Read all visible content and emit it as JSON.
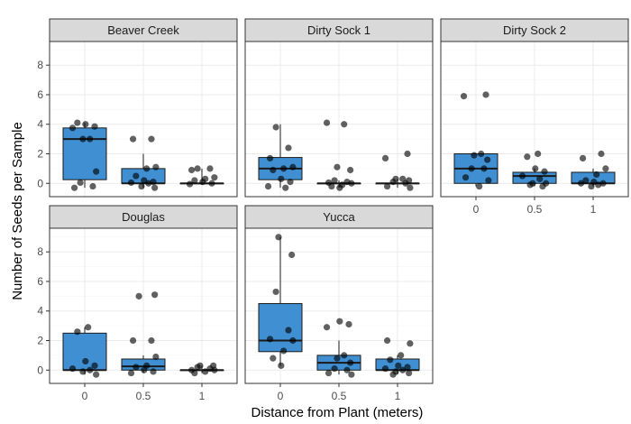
{
  "chart_data": {
    "type": "boxplot",
    "xlabel": "Distance from Plant (meters)",
    "ylabel": "Number of Seeds per Sample",
    "categories": [
      "0",
      "0.5",
      "1"
    ],
    "y_ticks": [
      "0",
      "2",
      "4",
      "6",
      "8"
    ],
    "ylim": [
      -0.9,
      9.6
    ],
    "grid": true,
    "box_color": "#3f8fd2",
    "panels": [
      {
        "name": "Beaver Creek",
        "boxes": [
          {
            "category": "0",
            "q1": 0.25,
            "median": 3.0,
            "q3": 3.75,
            "whisker_low": -0.3,
            "whisker_high": 4.1,
            "points": [
              -0.3,
              -0.2,
              0.05,
              0.8,
              3.0,
              3.0,
              3.75,
              3.85,
              4.0,
              4.1
            ]
          },
          {
            "category": "0.5",
            "q1": 0.0,
            "median": 0.0,
            "q3": 1.0,
            "whisker_low": -0.3,
            "whisker_high": 2.0,
            "points": [
              -0.3,
              -0.2,
              0.0,
              0.05,
              0.1,
              0.2,
              0.5,
              1.0,
              1.1,
              3.0,
              3.0
            ]
          },
          {
            "category": "1",
            "q1": 0.0,
            "median": 0.0,
            "q3": 0.0,
            "whisker_low": -0.1,
            "whisker_high": 1.0,
            "points": [
              -0.05,
              0.0,
              0.1,
              0.2,
              0.3,
              0.4,
              0.9,
              1.0,
              1.0
            ]
          }
        ]
      },
      {
        "name": "Dirty Sock 1",
        "boxes": [
          {
            "category": "0",
            "q1": 0.25,
            "median": 1.0,
            "q3": 1.75,
            "whisker_low": -0.3,
            "whisker_high": 4.0,
            "points": [
              -0.3,
              -0.2,
              0.1,
              0.3,
              0.9,
              1.0,
              1.1,
              1.7,
              2.4,
              3.8
            ]
          },
          {
            "category": "0.5",
            "q1": 0.0,
            "median": 0.0,
            "q3": 0.0,
            "whisker_low": -0.3,
            "whisker_high": 0.2,
            "points": [
              -0.3,
              -0.2,
              -0.1,
              0.0,
              0.05,
              0.1,
              0.2,
              0.9,
              1.1,
              4.0,
              4.1
            ]
          },
          {
            "category": "1",
            "q1": 0.0,
            "median": 0.0,
            "q3": 0.0,
            "whisker_low": -0.3,
            "whisker_high": 0.3,
            "points": [
              -0.3,
              -0.2,
              0.0,
              0.1,
              0.2,
              0.3,
              0.3,
              1.7,
              2.0
            ]
          }
        ]
      },
      {
        "name": "Dirty Sock 2",
        "boxes": [
          {
            "category": "0",
            "q1": 0.0,
            "median": 1.0,
            "q3": 2.0,
            "whisker_low": -0.2,
            "whisker_high": 2.0,
            "points": [
              -0.2,
              0.2,
              0.4,
              1.0,
              1.0,
              1.6,
              1.9,
              2.0,
              5.9,
              6.0
            ]
          },
          {
            "category": "0.5",
            "q1": 0.0,
            "median": 0.5,
            "q3": 0.75,
            "whisker_low": -0.2,
            "whisker_high": 1.0,
            "points": [
              -0.2,
              -0.1,
              0.0,
              0.0,
              0.3,
              0.5,
              0.8,
              1.0,
              1.8,
              2.0
            ]
          },
          {
            "category": "1",
            "q1": 0.0,
            "median": 0.0,
            "q3": 0.75,
            "whisker_low": -0.2,
            "whisker_high": 1.0,
            "points": [
              -0.2,
              -0.1,
              0.0,
              0.0,
              0.1,
              0.2,
              0.6,
              1.0,
              1.7,
              2.0
            ]
          }
        ]
      },
      {
        "name": "Douglas",
        "boxes": [
          {
            "category": "0",
            "q1": 0.0,
            "median": 0.0,
            "q3": 2.5,
            "whisker_low": -0.3,
            "whisker_high": 2.9,
            "points": [
              -0.3,
              -0.1,
              0.0,
              0.1,
              0.3,
              0.6,
              2.6,
              2.9
            ]
          },
          {
            "category": "0.5",
            "q1": 0.0,
            "median": 0.25,
            "q3": 0.75,
            "whisker_low": -0.2,
            "whisker_high": 1.0,
            "points": [
              -0.2,
              -0.1,
              0.0,
              0.2,
              0.3,
              0.9,
              2.0,
              2.0,
              5.0,
              5.1
            ]
          },
          {
            "category": "1",
            "q1": 0.0,
            "median": 0.0,
            "q3": 0.0,
            "whisker_low": -0.2,
            "whisker_high": 0.3,
            "points": [
              -0.2,
              -0.1,
              0.0,
              0.0,
              0.1,
              0.2,
              0.3,
              0.3
            ]
          }
        ]
      },
      {
        "name": "Yucca",
        "boxes": [
          {
            "category": "0",
            "q1": 1.25,
            "median": 2.0,
            "q3": 4.5,
            "whisker_low": 0.3,
            "whisker_high": 9.0,
            "points": [
              0.3,
              0.8,
              1.3,
              2.0,
              2.1,
              2.7,
              5.3,
              7.8,
              9.0
            ]
          },
          {
            "category": "0.5",
            "q1": 0.0,
            "median": 0.5,
            "q3": 1.0,
            "whisker_low": -0.3,
            "whisker_high": 2.0,
            "points": [
              -0.3,
              -0.2,
              0.0,
              0.1,
              0.5,
              0.8,
              1.0,
              2.9,
              3.1,
              3.3
            ]
          },
          {
            "category": "1",
            "q1": 0.0,
            "median": 0.0,
            "q3": 0.75,
            "whisker_low": -0.3,
            "whisker_high": 1.0,
            "points": [
              -0.3,
              -0.2,
              -0.1,
              0.0,
              0.1,
              0.2,
              0.3,
              0.7,
              1.0,
              1.8,
              2.0
            ]
          }
        ]
      }
    ]
  }
}
